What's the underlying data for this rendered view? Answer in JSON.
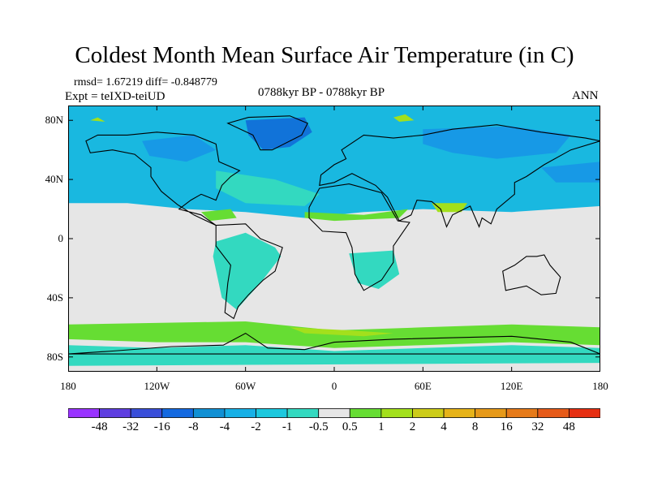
{
  "title": "Coldest Month Mean Surface Air Temperature (in C)",
  "stats": {
    "rmsd_diff": "rmsd= 1.67219 diff= -0.848779",
    "expt": "Expt = teIXD-teiUD",
    "period": "0788kyr BP - 0788kyr BP",
    "season": "ANN"
  },
  "map": {
    "projection": "cylindrical equidistant",
    "lon_range": [
      -180,
      180
    ],
    "lat_range": [
      -90,
      90
    ],
    "lat_labels": [
      "80N",
      "40N",
      "0",
      "40S",
      "80S"
    ],
    "lon_labels": [
      "180",
      "120W",
      "60W",
      "0",
      "60E",
      "120E",
      "180"
    ],
    "colors": {
      "zero_band": "#e6e6e6",
      "neg_small": "#33d9c0",
      "neg_mid": "#19b8e0",
      "neg_large": "#1799e6",
      "neg_xlarge": "#1173d9",
      "pos_small": "#66dd33",
      "pos_mid": "#a3e01c",
      "coast": "#000000"
    }
  },
  "colorbar": {
    "colors": [
      "#9933ff",
      "#5e3ee0",
      "#3a4fd9",
      "#1469e0",
      "#1190d4",
      "#17b0e6",
      "#1cc8de",
      "#33d9c0",
      "#e6e6e6",
      "#66dd33",
      "#a3e01c",
      "#cccc19",
      "#e6b319",
      "#e69919",
      "#e67a19",
      "#e65a19",
      "#e62f12"
    ],
    "labels": [
      "-48",
      "-32",
      "-16",
      "-8",
      "-4",
      "-2",
      "-1",
      "-0.5",
      "0.5",
      "1",
      "2",
      "4",
      "8",
      "16",
      "32",
      "48"
    ]
  }
}
